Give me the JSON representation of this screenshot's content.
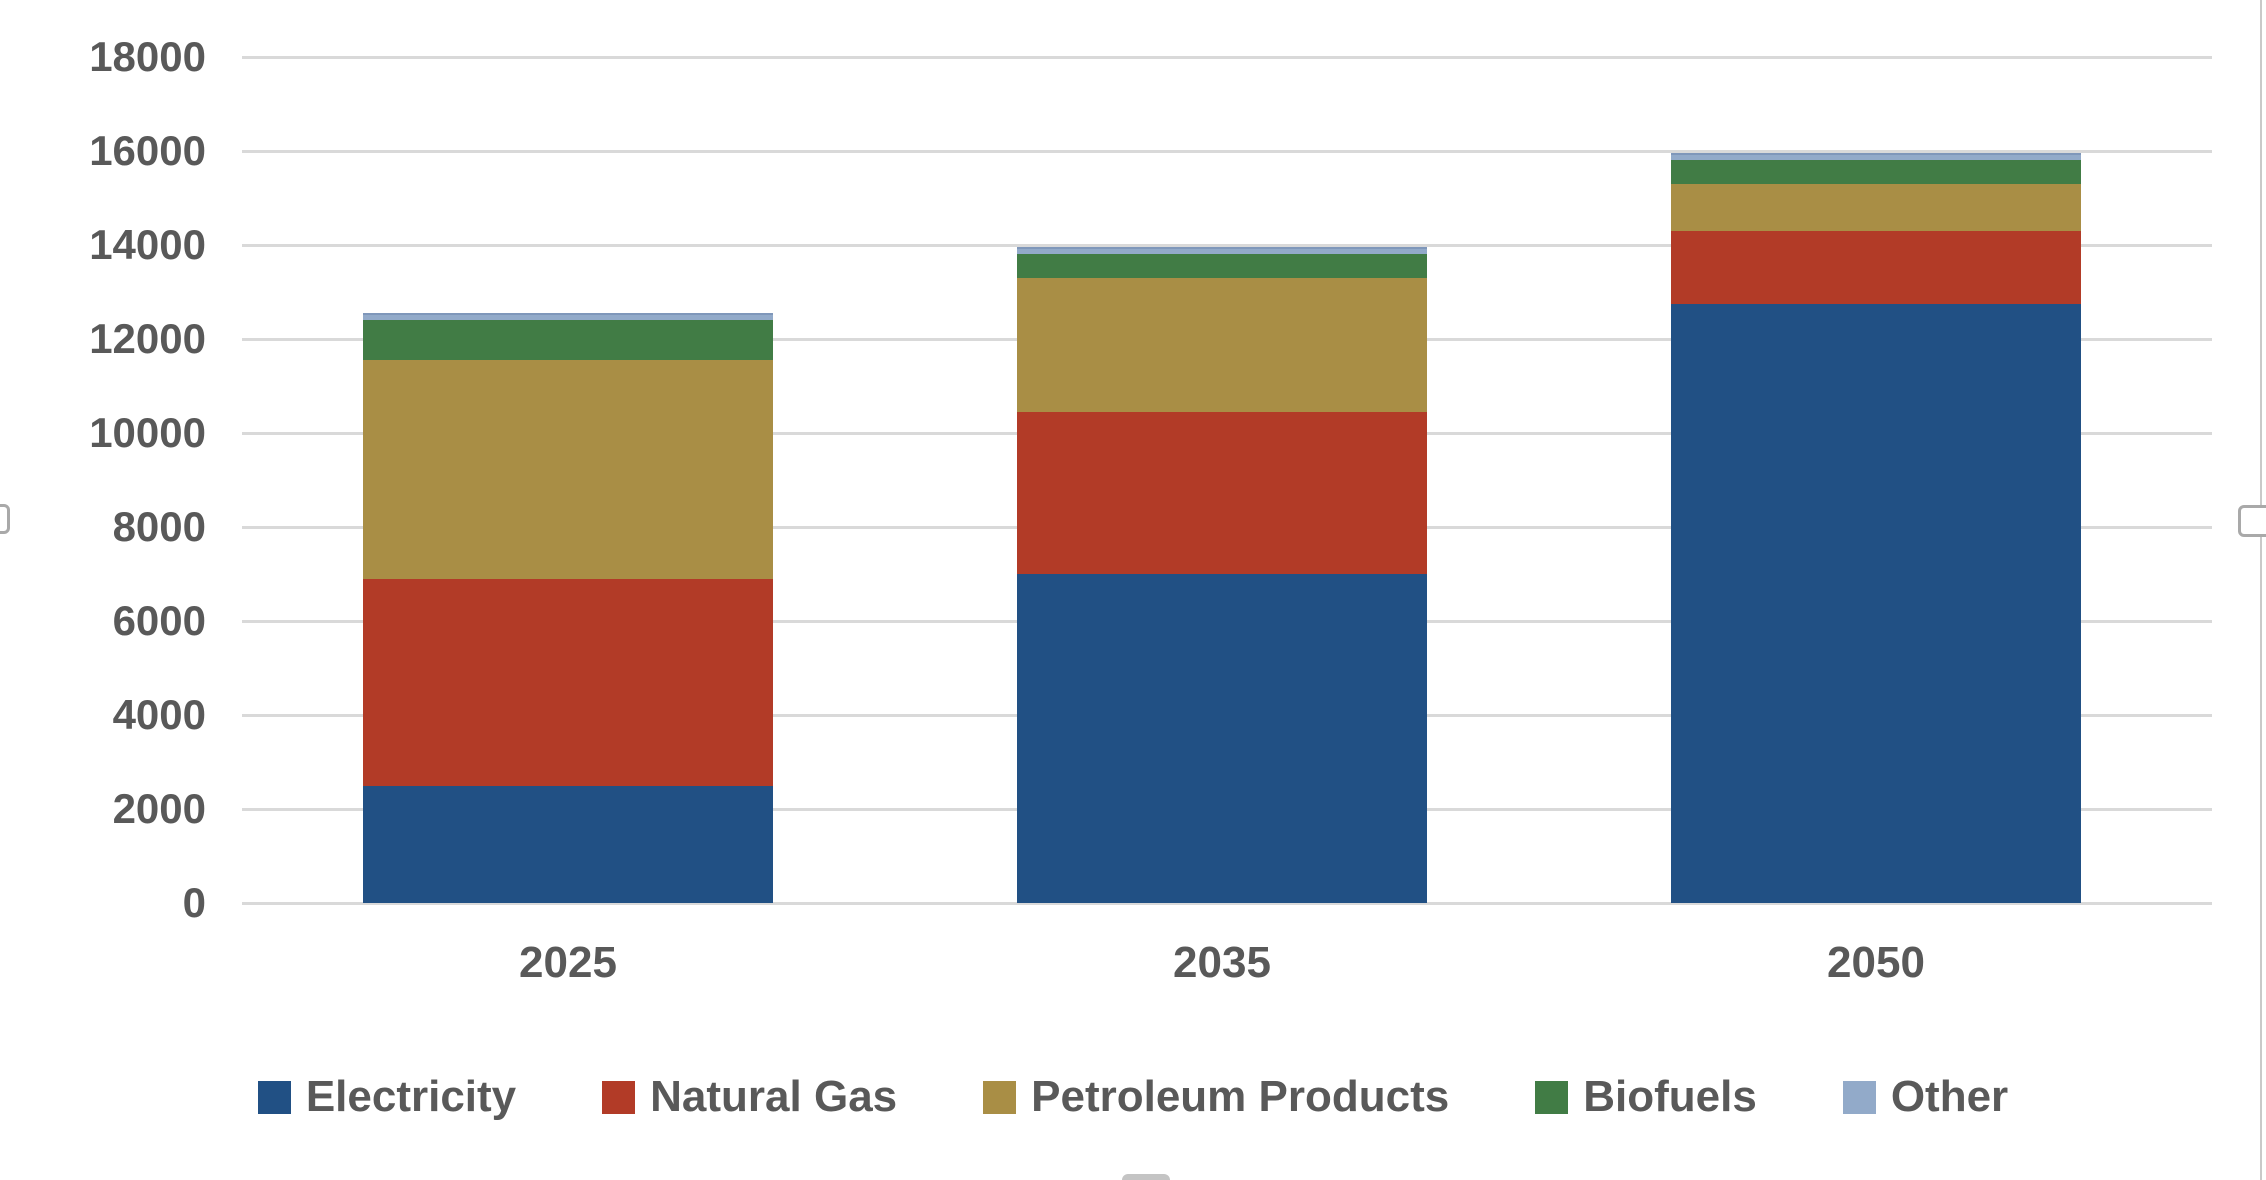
{
  "chart_data": {
    "type": "bar",
    "stacked": true,
    "title": "",
    "xlabel": "",
    "ylabel": "",
    "categories": [
      "2025",
      "2035",
      "2050"
    ],
    "series": [
      {
        "name": "Electricity",
        "color": "#215084",
        "values": [
          2500,
          7000,
          12750
        ]
      },
      {
        "name": "Natural Gas",
        "color": "#B23B27",
        "values": [
          4400,
          3450,
          1550
        ]
      },
      {
        "name": "Petroleum Products",
        "color": "#A98E45",
        "values": [
          4650,
          2850,
          1000
        ]
      },
      {
        "name": "Biofuels",
        "color": "#417C45",
        "values": [
          850,
          500,
          500
        ]
      },
      {
        "name": "Other",
        "color": "#92AAC9",
        "values": [
          150,
          150,
          150
        ]
      }
    ],
    "totals": [
      12550,
      13950,
      15950
    ],
    "ylim": [
      0,
      18000
    ],
    "ytick_step": 2000,
    "ytick_labels": [
      "0",
      "2000",
      "4000",
      "6000",
      "8000",
      "10000",
      "12000",
      "14000",
      "16000",
      "18000"
    ],
    "grid": "horizontal",
    "legend_position": "bottom",
    "legend_labels": [
      "Electricity",
      "Natural Gas",
      "Petroleum Products",
      "Biofuels",
      "Other"
    ]
  },
  "colors": {
    "background": "#FFFFFF",
    "gridline": "#D9D9D9",
    "text": "#595959",
    "selection_border": "#C9C9C9",
    "selection_handle": "#A9A9A9"
  }
}
